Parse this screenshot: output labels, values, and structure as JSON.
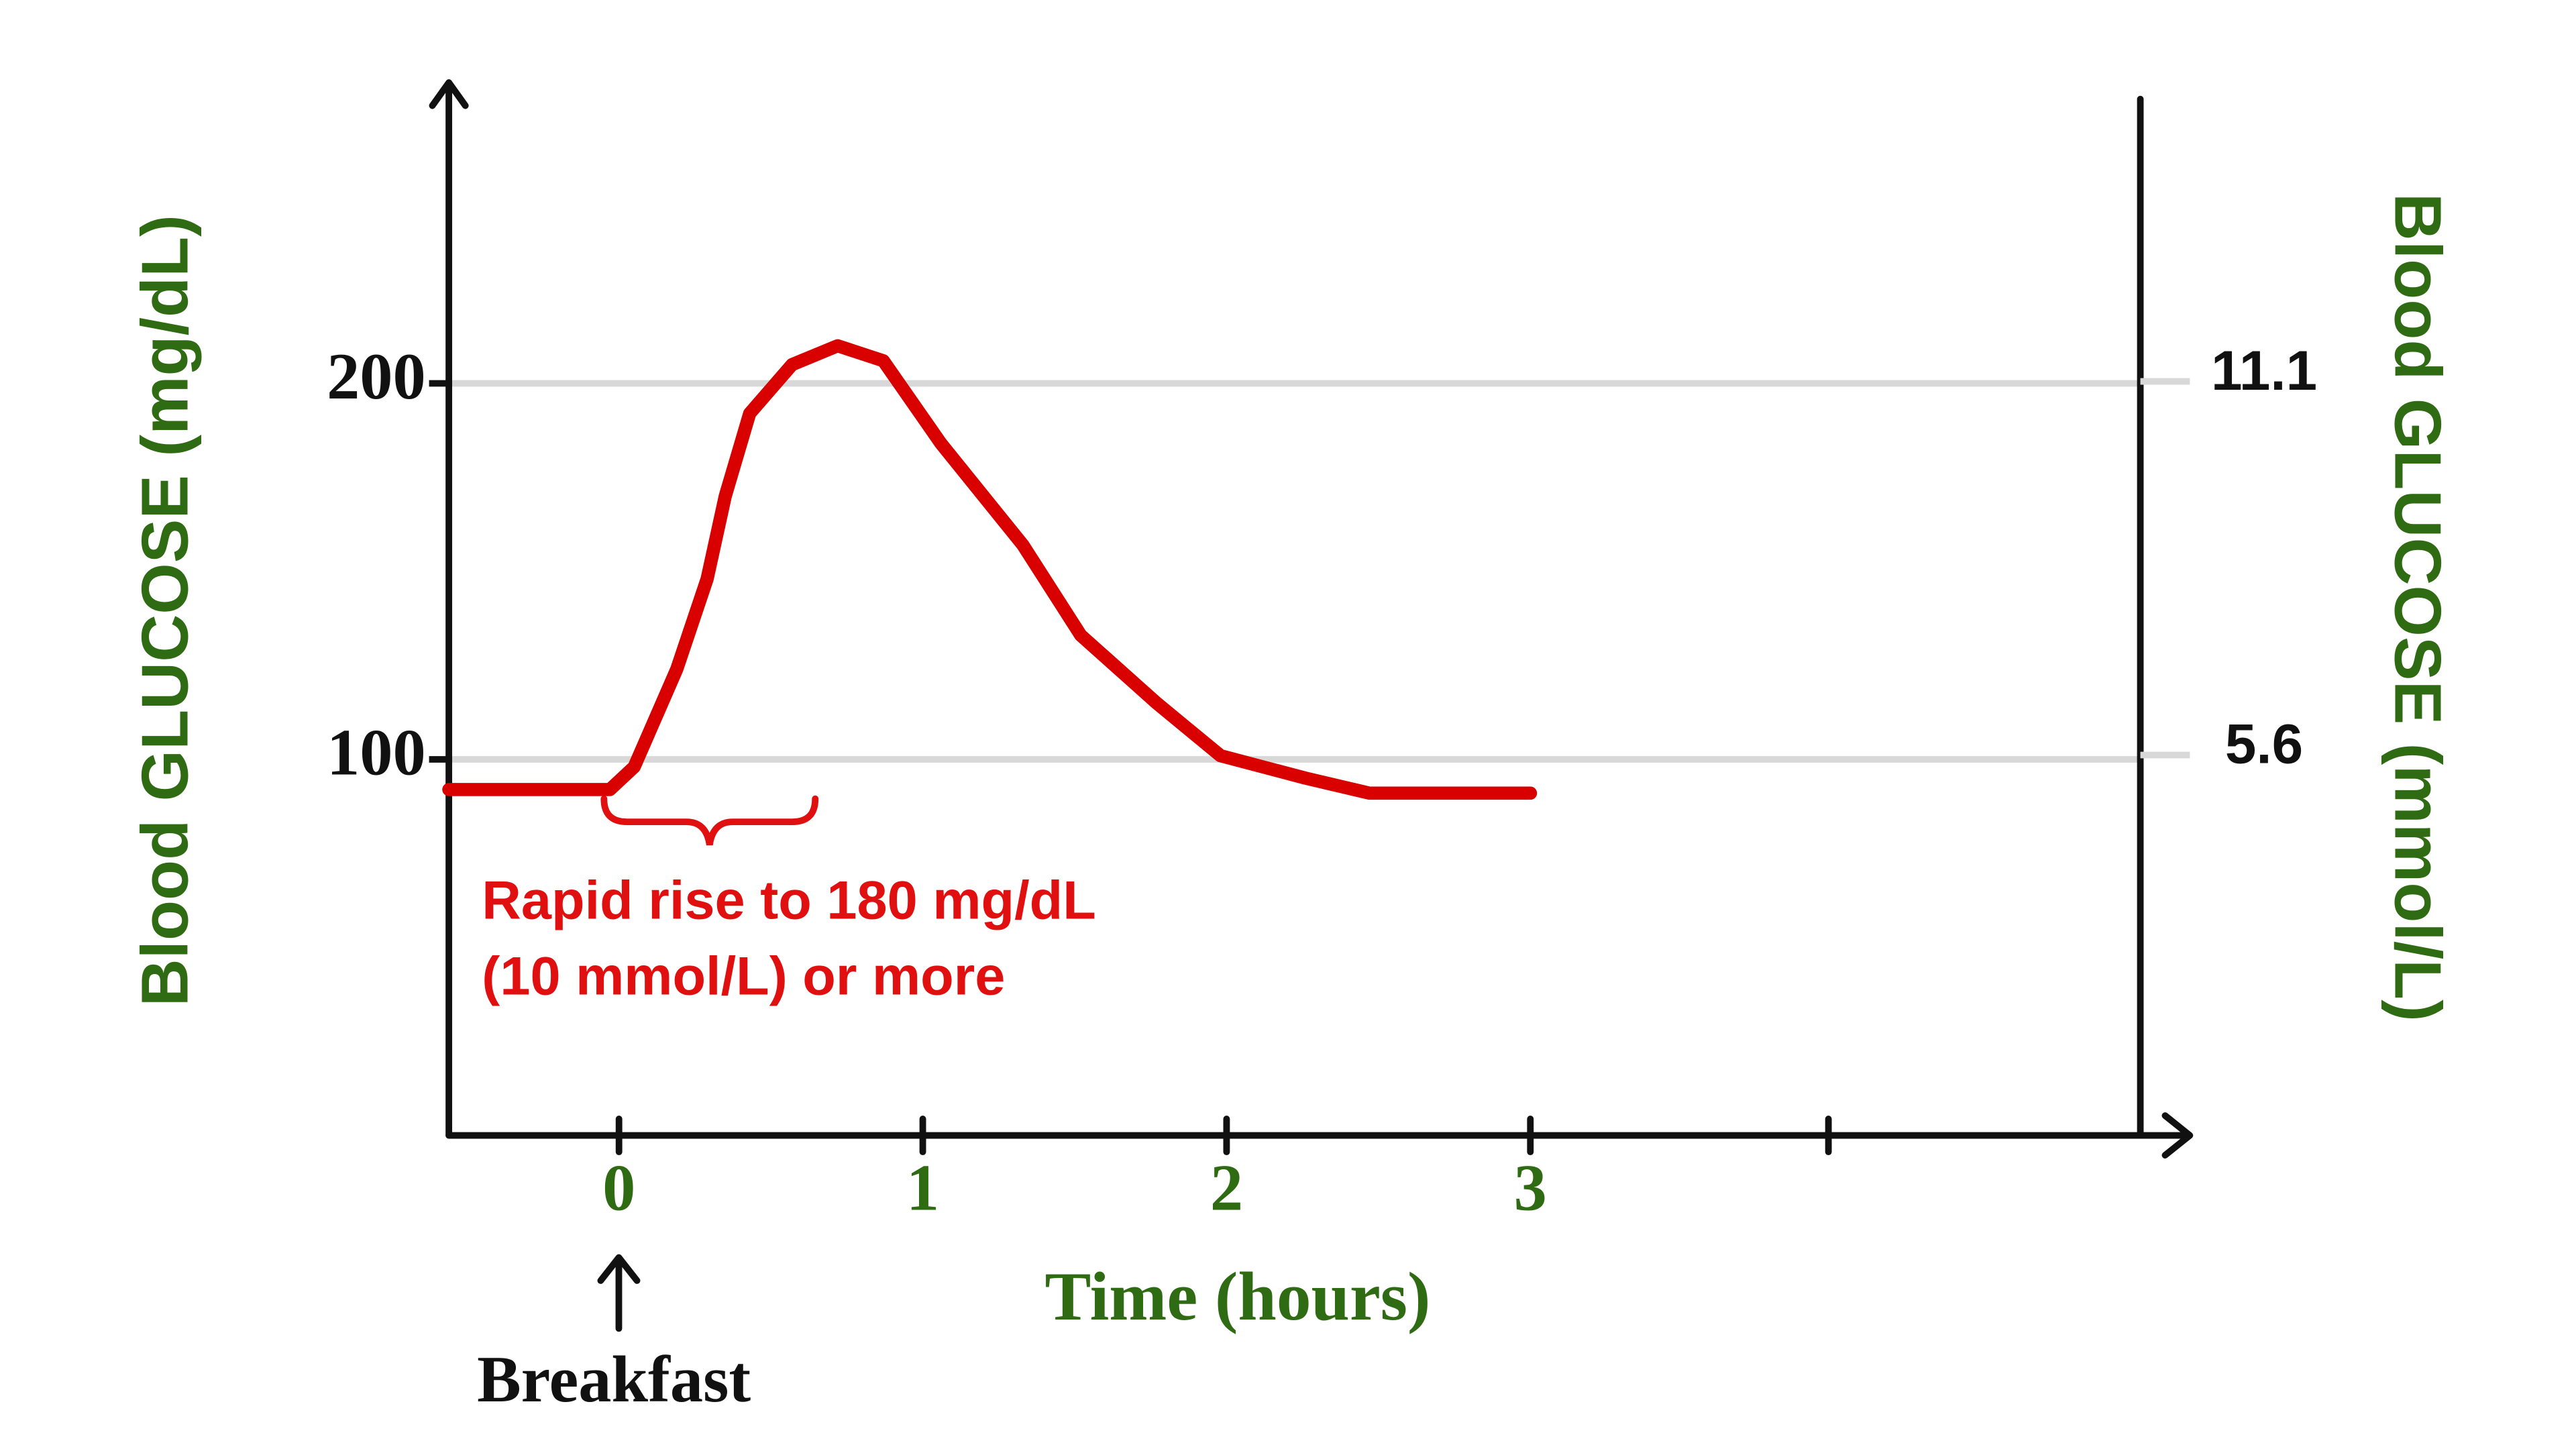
{
  "chart_data": {
    "type": "line",
    "y_label": "Blood GLUCOSE (mg/dL)",
    "y2_label": "Blood GLUCOSE (mmol/L)",
    "x_label": "Time (hours)",
    "annotations": [
      "Rapid rise to 180 mg/dL",
      "(10 mmol/L) or more"
    ],
    "marker_label": "Breakfast",
    "x": [
      -0.56,
      -0.03,
      0.05,
      0.19,
      0.29,
      0.35,
      0.43,
      0.57,
      0.72,
      0.87,
      1.06,
      1.33,
      1.52,
      1.77,
      1.98,
      2.26,
      2.47,
      3.0
    ],
    "values": [
      92,
      92,
      98,
      124,
      148,
      170,
      192,
      205,
      210,
      206,
      184,
      157,
      133,
      115,
      101,
      95,
      91,
      91
    ],
    "color": "#d90000",
    "xlim": [
      -0.56,
      5.16
    ],
    "xticks": [
      0,
      1,
      2,
      3
    ],
    "ylim": [
      0,
      280
    ],
    "yticks": [
      100,
      200
    ],
    "y2lim": [
      0,
      15.5
    ],
    "y2ticks": [
      5.6,
      11.1
    ],
    "grid": true
  }
}
